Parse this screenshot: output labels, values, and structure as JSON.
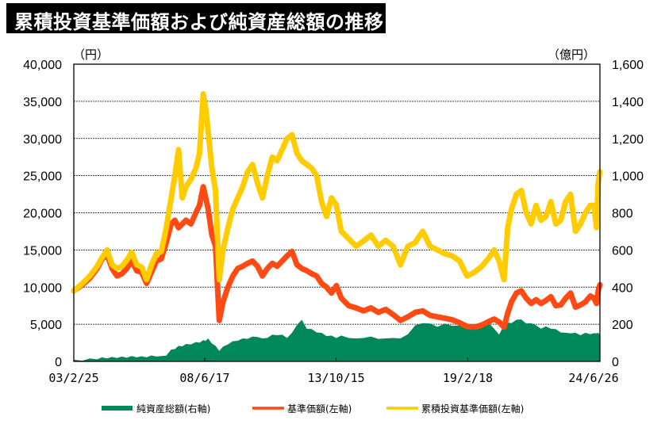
{
  "title": "累積投資基準価額および純資産総額の推移",
  "colors": {
    "net_assets": "#00875A",
    "nav": "#FF4A14",
    "cumulative_nav": "#FFCC00",
    "title_bg": "#000000",
    "title_fg": "#FFFFFF"
  },
  "chart_data": {
    "type": "line",
    "title": "累積投資基準価額および純資産総額の推移",
    "left_axis": {
      "unit_label": "（円）",
      "range": [
        0,
        40000
      ],
      "ticks": [
        0,
        5000,
        10000,
        15000,
        20000,
        25000,
        30000,
        35000,
        40000
      ],
      "tick_labels": [
        "0",
        "5,000",
        "10,000",
        "15,000",
        "20,000",
        "25,000",
        "30,000",
        "35,000",
        "40,000"
      ]
    },
    "right_axis": {
      "unit_label": "（億円）",
      "range": [
        0,
        1600
      ],
      "ticks": [
        0,
        200,
        400,
        600,
        800,
        1000,
        1200,
        1400,
        1600
      ],
      "tick_labels": [
        "0",
        "200",
        "400",
        "600",
        "800",
        "1,000",
        "1,200",
        "1,400",
        "1,600"
      ]
    },
    "x_axis": {
      "range": [
        2003.15,
        2024.49
      ],
      "ticks": [
        2003.15,
        2008.46,
        2013.79,
        2019.13,
        2024.49
      ],
      "tick_labels": [
        "03/2/25",
        "08/6/17",
        "13/10/15",
        "19/2/18",
        "24/6/26"
      ]
    },
    "grid": true,
    "legend_position": "bottom",
    "x": [
      2003.15,
      2003.5,
      2003.8,
      2004.1,
      2004.3,
      2004.5,
      2004.7,
      2004.9,
      2005.1,
      2005.3,
      2005.5,
      2005.7,
      2005.9,
      2006.1,
      2006.3,
      2006.5,
      2006.7,
      2006.9,
      2007.1,
      2007.25,
      2007.4,
      2007.55,
      2007.7,
      2007.9,
      2008.1,
      2008.25,
      2008.4,
      2008.5,
      2008.6,
      2008.75,
      2008.9,
      2009.05,
      2009.2,
      2009.4,
      2009.6,
      2009.8,
      2010.0,
      2010.2,
      2010.4,
      2010.6,
      2010.8,
      2011.0,
      2011.2,
      2011.4,
      2011.6,
      2011.8,
      2012.0,
      2012.2,
      2012.4,
      2012.6,
      2012.8,
      2013.0,
      2013.2,
      2013.4,
      2013.6,
      2013.8,
      2014.0,
      2014.3,
      2014.6,
      2014.9,
      2015.2,
      2015.5,
      2015.8,
      2016.1,
      2016.4,
      2016.7,
      2017.0,
      2017.3,
      2017.6,
      2017.9,
      2018.2,
      2018.5,
      2018.8,
      2019.1,
      2019.4,
      2019.7,
      2020.0,
      2020.2,
      2020.4,
      2020.6,
      2020.75,
      2020.9,
      2021.1,
      2021.3,
      2021.5,
      2021.7,
      2021.9,
      2022.1,
      2022.3,
      2022.5,
      2022.7,
      2022.9,
      2023.1,
      2023.3,
      2023.5,
      2023.7,
      2023.9,
      2024.1,
      2024.25,
      2024.35,
      2024.42,
      2024.49
    ],
    "series": [
      {
        "name": "純資産総額(右軸)",
        "axis": "right",
        "style": "area",
        "values": [
          5,
          8,
          12,
          15,
          18,
          20,
          20,
          22,
          22,
          24,
          25,
          26,
          24,
          26,
          28,
          30,
          25,
          35,
          60,
          70,
          80,
          85,
          90,
          95,
          100,
          105,
          110,
          115,
          120,
          100,
          80,
          60,
          75,
          95,
          105,
          115,
          120,
          125,
          130,
          135,
          120,
          130,
          140,
          145,
          140,
          130,
          150,
          200,
          220,
          180,
          170,
          160,
          150,
          140,
          135,
          130,
          135,
          130,
          120,
          130,
          130,
          125,
          120,
          130,
          120,
          150,
          190,
          210,
          200,
          190,
          200,
          195,
          190,
          185,
          180,
          190,
          200,
          180,
          140,
          200,
          205,
          210,
          220,
          230,
          200,
          210,
          190,
          180,
          185,
          180,
          170,
          160,
          150,
          155,
          150,
          145,
          150,
          150,
          148,
          155,
          150,
          145
        ]
      },
      {
        "name": "基準価額(左軸)",
        "axis": "left",
        "style": "line",
        "values": [
          9500,
          10300,
          11200,
          12500,
          13800,
          14400,
          12500,
          11500,
          11800,
          12500,
          13600,
          12200,
          12000,
          10500,
          12000,
          13500,
          13800,
          16000,
          18500,
          19000,
          18000,
          18500,
          19000,
          18500,
          20000,
          21000,
          23500,
          22000,
          20500,
          17000,
          15500,
          5500,
          8000,
          10000,
          11500,
          12500,
          12800,
          13200,
          13500,
          12800,
          11500,
          12500,
          13200,
          12800,
          13500,
          14200,
          14800,
          13000,
          12500,
          12200,
          11800,
          11500,
          10500,
          10000,
          9200,
          10200,
          8500,
          7500,
          7200,
          6800,
          7200,
          6600,
          7000,
          6300,
          5500,
          6000,
          6600,
          6800,
          6200,
          6000,
          5800,
          5600,
          5200,
          4700,
          4600,
          4900,
          5400,
          5700,
          5300,
          4600,
          6500,
          8000,
          9200,
          9500,
          8500,
          7800,
          8300,
          7800,
          8200,
          8700,
          7500,
          7600,
          8500,
          9200,
          7300,
          7600,
          8000,
          8800,
          8500,
          7800,
          9500,
          10300
        ]
      },
      {
        "name": "累積投資基準価額(左軸)",
        "axis": "left",
        "style": "line",
        "values": [
          9500,
          10500,
          11500,
          12800,
          14000,
          15000,
          13000,
          12500,
          12800,
          13600,
          14700,
          13000,
          12700,
          11000,
          13000,
          14500,
          14800,
          18000,
          22000,
          25000,
          28500,
          22000,
          23500,
          24500,
          26000,
          28000,
          36000,
          34000,
          31000,
          26000,
          23000,
          11000,
          15000,
          18000,
          20500,
          22000,
          23500,
          25500,
          26500,
          24000,
          22000,
          25000,
          27500,
          27000,
          28500,
          30000,
          30500,
          28000,
          27000,
          26500,
          26000,
          25000,
          21500,
          19500,
          22000,
          21000,
          17500,
          16500,
          15500,
          16200,
          17000,
          15500,
          16300,
          15500,
          13000,
          15500,
          16000,
          17500,
          15500,
          15000,
          14500,
          14200,
          13500,
          11500,
          12000,
          12800,
          14000,
          15000,
          13500,
          11000,
          18000,
          20500,
          22500,
          23000,
          20000,
          18500,
          21000,
          19000,
          19500,
          21500,
          18500,
          19000,
          21500,
          22500,
          17500,
          18500,
          20000,
          21000,
          21000,
          18000,
          24000,
          25500
        ]
      }
    ]
  },
  "legend": [
    {
      "label": "純資産総額(右軸)",
      "swatch": "block"
    },
    {
      "label": "基準価額(左軸)",
      "swatch": "line"
    },
    {
      "label": "累積投資基準価額(左軸)",
      "swatch": "line"
    }
  ]
}
